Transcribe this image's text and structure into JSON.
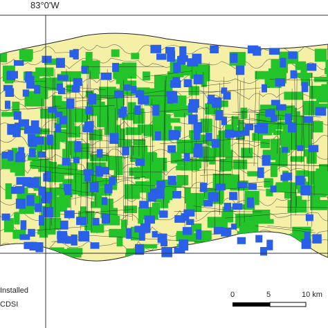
{
  "map": {
    "longitude_label": "83°0'W",
    "colors": {
      "land": "#f5f0a6",
      "parcels": "#22c42a",
      "parcel_lines": "#1a1a1a",
      "blocks": "#2a5fe8",
      "background": "#ffffff"
    }
  },
  "legend": {
    "item_1": "Installed",
    "item_2": "CDSI"
  },
  "scale_bar": {
    "tick_0": "0",
    "tick_1": "5",
    "tick_2": "10 km"
  }
}
